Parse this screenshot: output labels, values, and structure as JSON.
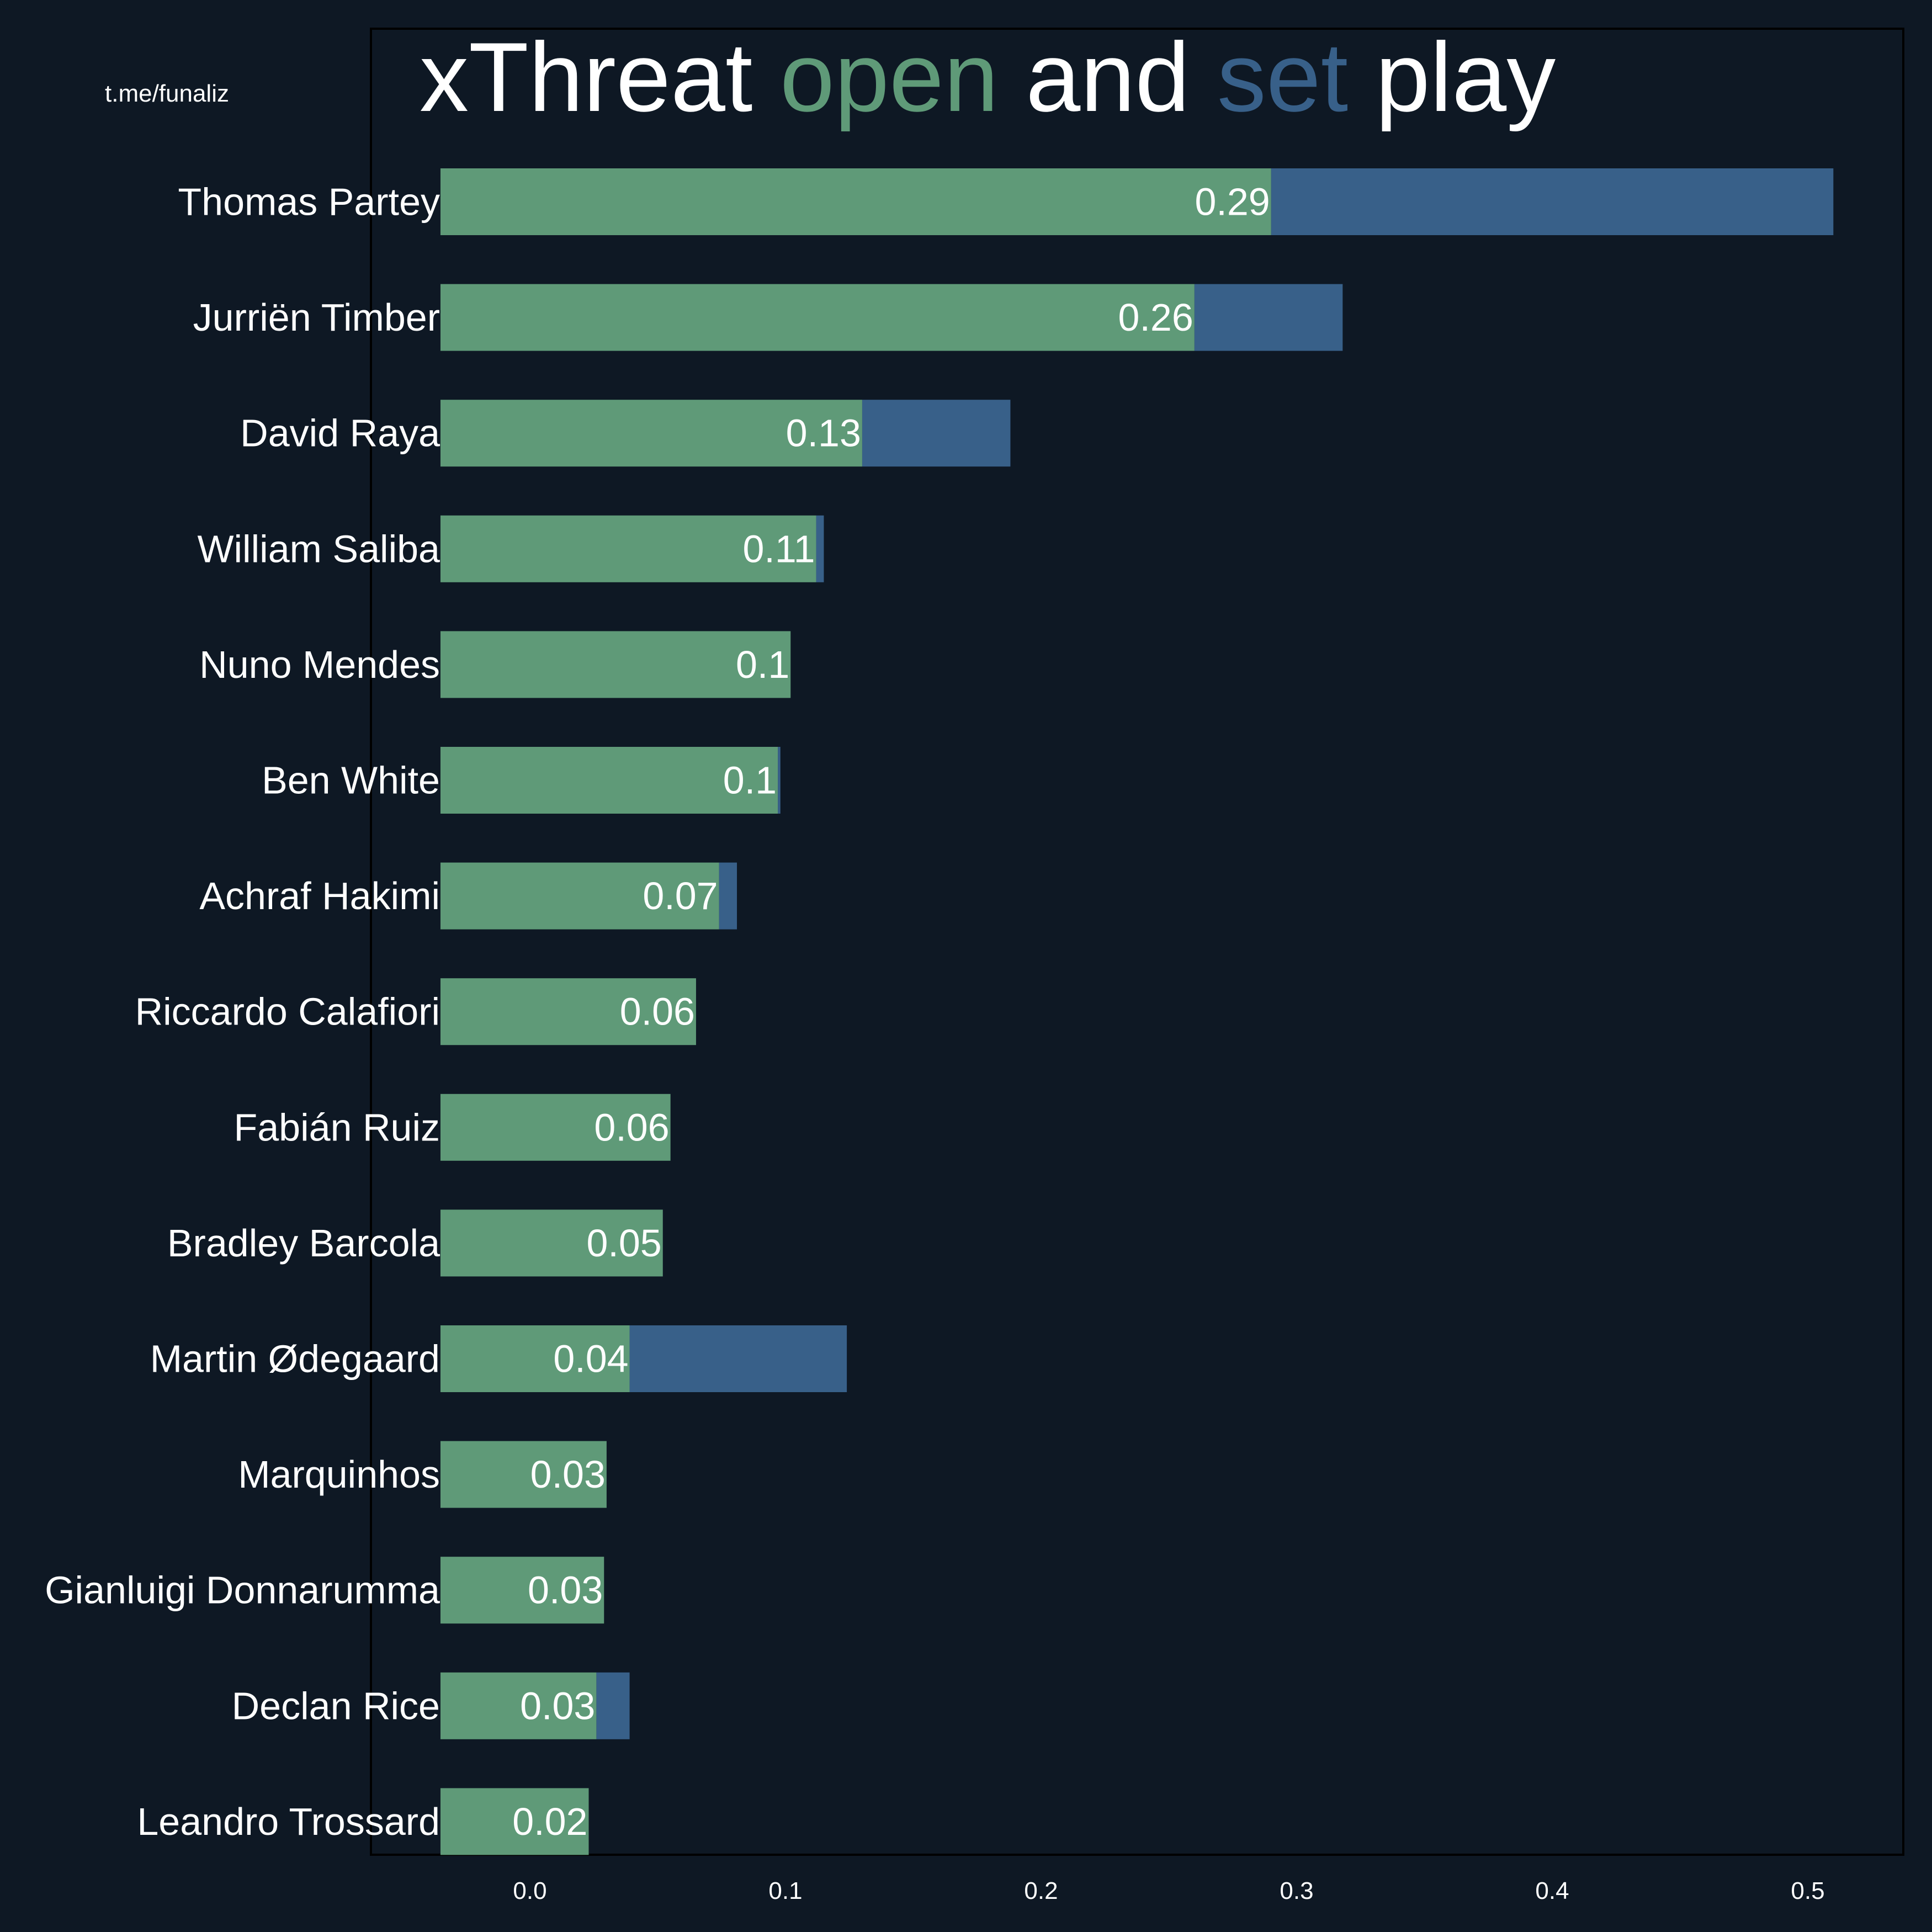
{
  "credit": "t.me/funaliz",
  "title": {
    "part1": "xThreat ",
    "open": "open",
    "part2": " and ",
    "set": "set",
    "part3": " play"
  },
  "colors": {
    "background": "#0e1824",
    "open": "#5f9a78",
    "set": "#386089",
    "text": "#ffffff"
  },
  "chart_data": {
    "type": "bar",
    "orientation": "horizontal",
    "stacked": true,
    "title": "xThreat open and set play",
    "xlabel": "",
    "ylabel": "",
    "xlim": [
      -0.035,
      0.53
    ],
    "xticks": [
      0.0,
      0.1,
      0.2,
      0.3,
      0.4,
      0.5
    ],
    "xtick_labels": [
      "0.0",
      "0.1",
      "0.2",
      "0.3",
      "0.4",
      "0.5"
    ],
    "grid": false,
    "legend": "none (title colors)",
    "categories": [
      "Thomas Partey",
      "Jurriën Timber",
      "David Raya",
      "William Saliba",
      "Nuno Mendes",
      "Ben White",
      "Achraf Hakimi",
      "Riccardo Calafiori",
      "Fabián Ruiz",
      "Bradley Barcola",
      "Martin Ødegaard",
      "Marquinhos",
      "Gianluigi Donnarumma",
      "Declan Rice",
      "Leandro Trossard"
    ],
    "series": [
      {
        "name": "open",
        "color": "#5f9a78",
        "values": [
          0.29,
          0.26,
          0.13,
          0.112,
          0.102,
          0.097,
          0.074,
          0.065,
          0.055,
          0.052,
          0.039,
          0.03,
          0.029,
          0.026,
          0.023
        ]
      },
      {
        "name": "set",
        "color": "#386089",
        "values": [
          0.22,
          0.058,
          0.058,
          0.003,
          0.0,
          0.001,
          0.007,
          0.0,
          0.0,
          0.0,
          0.085,
          0.0,
          0.0,
          0.013,
          0.0
        ]
      }
    ],
    "data_labels": [
      "0.29",
      "0.26",
      "0.13",
      "0.11",
      "0.1",
      "0.1",
      "0.07",
      "0.06",
      "0.06",
      "0.05",
      "0.04",
      "0.03",
      "0.03",
      "0.03",
      "0.02"
    ]
  }
}
